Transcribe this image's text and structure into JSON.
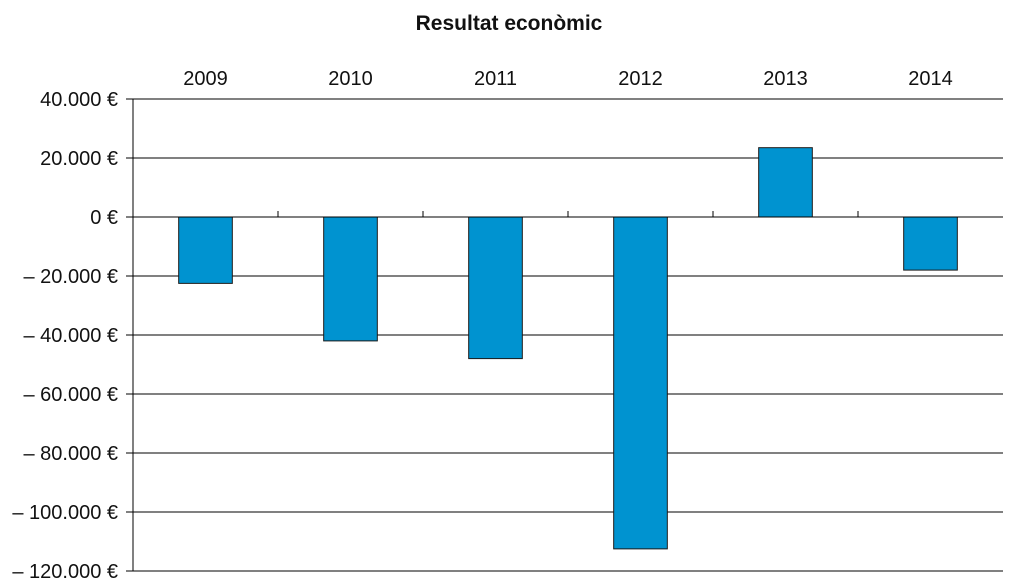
{
  "chart_data": {
    "type": "bar",
    "title": "Resultat econòmic",
    "categories": [
      "2009",
      "2010",
      "2011",
      "2012",
      "2013",
      "2014"
    ],
    "values": [
      -22500,
      -42000,
      -48000,
      -112500,
      23500,
      -18000
    ],
    "ylim": [
      -120000,
      40000
    ],
    "yticks": [
      40000,
      20000,
      0,
      -20000,
      -40000,
      -60000,
      -80000,
      -100000,
      -120000
    ],
    "ytick_labels": [
      "40.000 €",
      "20.000 €",
      "0 €",
      "– 20.000 €",
      "– 40.000 €",
      "– 60.000 €",
      "– 80.000 €",
      "– 100.000 €",
      "– 120.000 €"
    ],
    "xlabel": "",
    "ylabel": "",
    "grid": true,
    "category_labels_position": "top",
    "bar_color": "#0093d0"
  }
}
